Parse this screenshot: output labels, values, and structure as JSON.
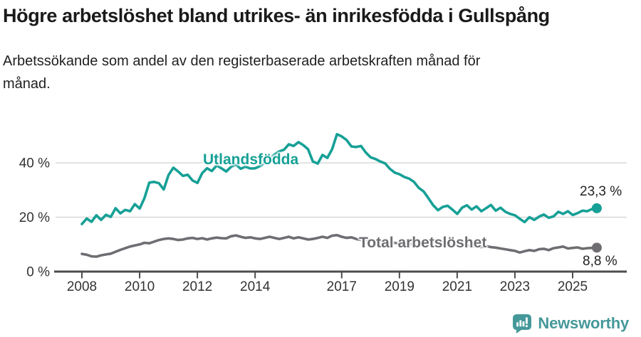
{
  "header": {
    "title": "Högre arbetslöshet bland utrikes- än inrikesfödda i Gullspång",
    "subtitle_line1": "Arbetssökande som andel av den registerbaserade arbetskraften månad för",
    "subtitle_line2": "månad."
  },
  "chart_data": {
    "type": "line",
    "title": "Högre arbetslöshet bland utrikes- än inrikesfödda i Gullspång",
    "subtitle": "Arbetssökande som andel av den registerbaserade arbetskraften månad för månad.",
    "xlabel": "",
    "ylabel": "",
    "grid": "horizontal",
    "legend_position": "inline-on-lines",
    "x_start_year": 2008,
    "x_step_years": 0.1667,
    "x_end_label": "2025",
    "ylim": [
      0,
      58
    ],
    "x_ticks": [
      2008,
      2010,
      2012,
      2014,
      2017,
      2019,
      2021,
      2023,
      2025
    ],
    "y_ticks": [
      {
        "value": 0,
        "label": "0 %"
      },
      {
        "value": 20,
        "label": "20 %"
      },
      {
        "value": 40,
        "label": "40 %"
      }
    ],
    "series": [
      {
        "name": "Utlandsfödda",
        "color": "#16a096",
        "end_label": "23,3 %",
        "end_value": 23.3,
        "values": [
          17.5,
          19.5,
          18.3,
          20.7,
          19.0,
          20.9,
          20.1,
          23.3,
          21.4,
          22.7,
          22.2,
          24.8,
          23.2,
          27.0,
          32.7,
          33.0,
          32.5,
          30.2,
          35.5,
          38.2,
          36.8,
          35.2,
          35.6,
          33.5,
          32.6,
          36.2,
          38.0,
          37.0,
          39.0,
          38.0,
          36.8,
          38.5,
          39.4,
          37.8,
          38.6,
          37.9,
          38.0,
          38.8,
          40.0,
          41.5,
          43.0,
          44.2,
          44.8,
          46.8,
          46.2,
          47.6,
          46.5,
          45.0,
          40.5,
          39.7,
          42.9,
          41.8,
          45.0,
          50.5,
          49.7,
          48.4,
          46.0,
          45.8,
          46.2,
          43.8,
          42.0,
          41.4,
          40.5,
          39.8,
          37.8,
          36.4,
          35.8,
          34.8,
          34.2,
          33.0,
          30.8,
          29.5,
          27.0,
          24.4,
          22.6,
          23.8,
          24.2,
          22.8,
          21.2,
          23.5,
          24.4,
          22.8,
          24.0,
          22.2,
          23.3,
          24.5,
          22.4,
          23.5,
          22.0,
          21.2,
          20.7,
          19.4,
          18.2,
          20.0,
          19.0,
          20.2,
          21.0,
          19.8,
          20.3,
          22.0,
          21.2,
          22.2,
          20.8,
          21.5,
          22.4,
          22.2,
          23.0,
          23.3
        ]
      },
      {
        "name": "Total arbetslöshet",
        "color": "#6f6d72",
        "end_label": "8,8 %",
        "end_value": 8.8,
        "values": [
          6.5,
          6.2,
          5.6,
          5.5,
          6.0,
          6.3,
          6.6,
          7.3,
          8.0,
          8.6,
          9.2,
          9.6,
          10.0,
          10.6,
          10.4,
          11.0,
          11.6,
          12.0,
          12.2,
          12.0,
          11.6,
          11.8,
          12.2,
          12.4,
          12.0,
          12.3,
          11.8,
          12.2,
          12.5,
          12.3,
          12.2,
          13.0,
          13.3,
          12.8,
          12.4,
          12.6,
          12.2,
          12.0,
          12.4,
          12.8,
          12.4,
          12.0,
          12.4,
          12.8,
          12.2,
          12.6,
          12.2,
          11.8,
          12.0,
          12.4,
          12.8,
          12.4,
          13.2,
          13.4,
          12.8,
          12.4,
          12.6,
          12.0,
          11.6,
          11.8,
          11.4,
          11.0,
          11.2,
          10.8,
          10.4,
          10.6,
          10.2,
          10.0,
          10.4,
          10.0,
          9.8,
          10.0,
          10.2,
          10.8,
          11.0,
          10.6,
          10.4,
          10.0,
          9.8,
          9.6,
          9.8,
          9.4,
          9.2,
          9.0,
          9.4,
          9.0,
          8.8,
          8.5,
          8.2,
          7.9,
          7.6,
          7.0,
          7.5,
          7.9,
          7.6,
          8.2,
          8.4,
          7.9,
          8.6,
          8.9,
          9.2,
          8.5,
          8.7,
          8.9,
          8.4,
          8.6,
          8.7,
          8.8
        ]
      }
    ]
  },
  "footer": {
    "brand": "Newsworthy",
    "brand_color": "#45989a",
    "logo_icon": "speech-bubble-bar-chart-icon"
  }
}
